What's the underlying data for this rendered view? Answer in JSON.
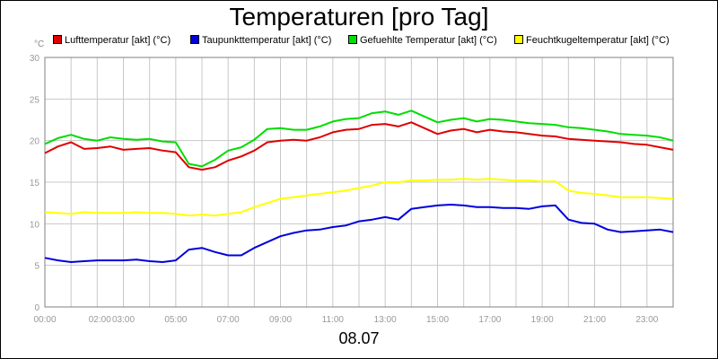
{
  "chart_data": {
    "type": "line",
    "title": "Temperaturen [pro Tag]",
    "ylabel": "°C",
    "xlabel": "08.07",
    "ylim": [
      0,
      30
    ],
    "yticks": [
      0,
      5,
      10,
      15,
      20,
      25,
      30
    ],
    "xlim": [
      0,
      24
    ],
    "xticks": [
      {
        "t": 0,
        "label": "00:00"
      },
      {
        "t": 2.1,
        "label": "02:00"
      },
      {
        "t": 3,
        "label": "03:00"
      },
      {
        "t": 5,
        "label": "05:00"
      },
      {
        "t": 7,
        "label": "07:00"
      },
      {
        "t": 9,
        "label": "09:00"
      },
      {
        "t": 11,
        "label": "11:00"
      },
      {
        "t": 13,
        "label": "13:00"
      },
      {
        "t": 15,
        "label": "15:00"
      },
      {
        "t": 17,
        "label": "17:00"
      },
      {
        "t": 19,
        "label": "19:00"
      },
      {
        "t": 21,
        "label": "21:00"
      },
      {
        "t": 23,
        "label": "23:00"
      }
    ],
    "x": [
      0,
      0.5,
      1,
      1.5,
      2,
      2.5,
      3,
      3.5,
      4,
      4.5,
      5,
      5.5,
      6,
      6.5,
      7,
      7.5,
      8,
      8.5,
      9,
      9.5,
      10,
      10.5,
      11,
      11.5,
      12,
      12.5,
      13,
      13.5,
      14,
      14.5,
      15,
      15.5,
      16,
      16.5,
      17,
      17.5,
      18,
      18.5,
      19,
      19.5,
      20,
      20.5,
      21,
      21.5,
      22,
      22.5,
      23,
      23.5,
      24
    ],
    "series": [
      {
        "name": "Lufttemperatur [akt] (°C)",
        "color": "#e00000",
        "values": [
          18.5,
          19.3,
          19.8,
          19.0,
          19.1,
          19.3,
          18.9,
          19.0,
          19.1,
          18.8,
          18.6,
          16.8,
          16.5,
          16.8,
          17.6,
          18.1,
          18.8,
          19.8,
          20.0,
          20.1,
          20.0,
          20.4,
          21.0,
          21.3,
          21.4,
          21.9,
          22.0,
          21.7,
          22.2,
          21.5,
          20.8,
          21.2,
          21.4,
          21.0,
          21.3,
          21.1,
          21.0,
          20.8,
          20.6,
          20.5,
          20.2,
          20.1,
          20.0,
          19.9,
          19.8,
          19.6,
          19.5,
          19.2,
          18.9
        ]
      },
      {
        "name": "Taupunkttemperatur [akt] (°C)",
        "color": "#0000dd",
        "values": [
          5.9,
          5.6,
          5.4,
          5.5,
          5.6,
          5.6,
          5.6,
          5.7,
          5.5,
          5.4,
          5.6,
          6.9,
          7.1,
          6.6,
          6.2,
          6.2,
          7.1,
          7.8,
          8.5,
          8.9,
          9.2,
          9.3,
          9.6,
          9.8,
          10.3,
          10.5,
          10.8,
          10.5,
          11.8,
          12.0,
          12.2,
          12.3,
          12.2,
          12.0,
          12.0,
          11.9,
          11.9,
          11.8,
          12.1,
          12.2,
          10.5,
          10.1,
          10.0,
          9.3,
          9.0,
          9.1,
          9.2,
          9.3,
          9.0
        ]
      },
      {
        "name": "Gefuehlte Temperatur [akt] (°C)",
        "color": "#00dd00",
        "values": [
          19.6,
          20.3,
          20.7,
          20.2,
          20.0,
          20.4,
          20.2,
          20.1,
          20.2,
          19.9,
          19.8,
          17.2,
          16.9,
          17.7,
          18.8,
          19.2,
          20.1,
          21.4,
          21.5,
          21.3,
          21.3,
          21.7,
          22.3,
          22.6,
          22.7,
          23.3,
          23.5,
          23.1,
          23.6,
          22.9,
          22.2,
          22.5,
          22.7,
          22.3,
          22.6,
          22.5,
          22.3,
          22.1,
          22.0,
          21.9,
          21.6,
          21.5,
          21.3,
          21.1,
          20.8,
          20.7,
          20.6,
          20.4,
          20.0
        ]
      },
      {
        "name": "Feuchtkugeltemperatur [akt] (°C)",
        "color": "#ffff00",
        "values": [
          11.4,
          11.3,
          11.2,
          11.4,
          11.3,
          11.3,
          11.3,
          11.4,
          11.3,
          11.3,
          11.2,
          11.0,
          11.1,
          11.0,
          11.2,
          11.4,
          12.0,
          12.5,
          13.0,
          13.2,
          13.4,
          13.6,
          13.8,
          14.0,
          14.3,
          14.6,
          15.0,
          15.0,
          15.2,
          15.2,
          15.3,
          15.3,
          15.4,
          15.3,
          15.4,
          15.3,
          15.2,
          15.2,
          15.1,
          15.1,
          14.0,
          13.7,
          13.6,
          13.4,
          13.2,
          13.2,
          13.2,
          13.1,
          13.0
        ]
      }
    ]
  }
}
